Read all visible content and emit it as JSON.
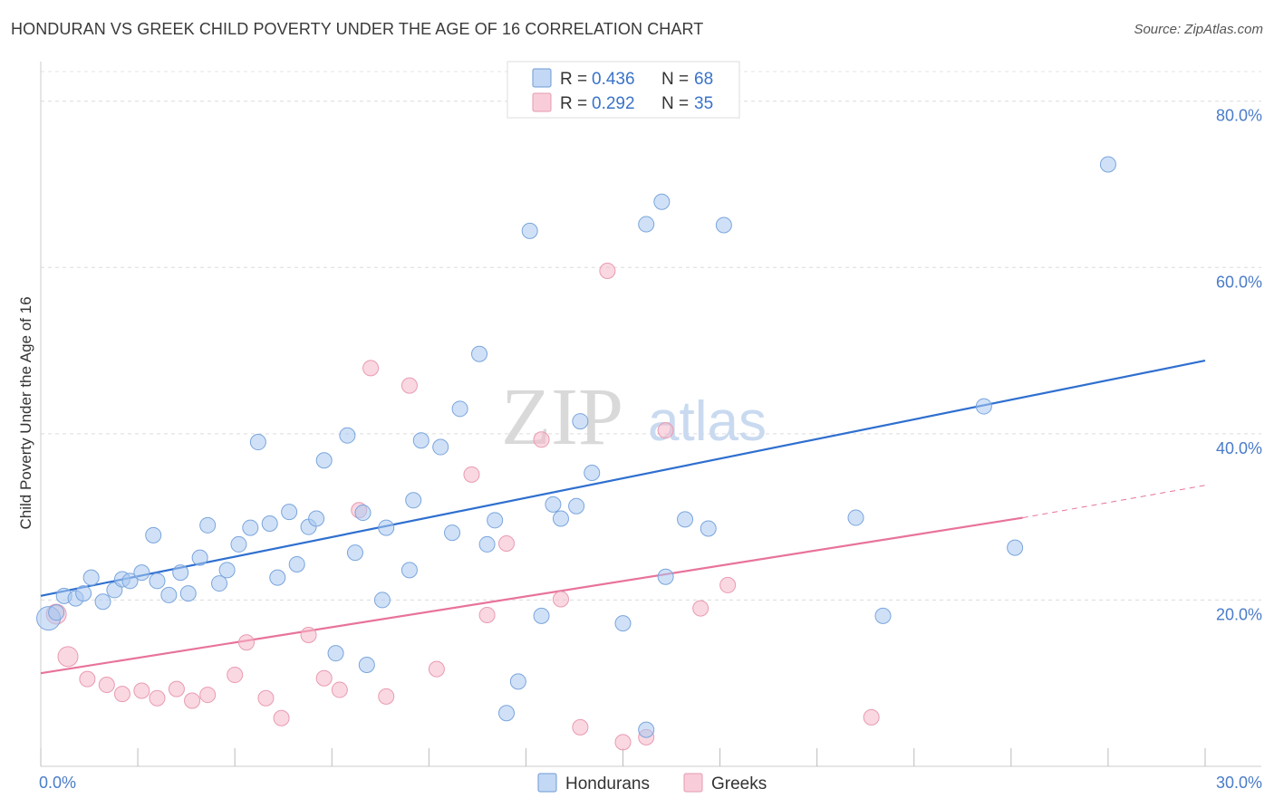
{
  "header": {
    "title": "HONDURAN VS GREEK CHILD POVERTY UNDER THE AGE OF 16 CORRELATION CHART",
    "source": "Source: ZipAtlas.com"
  },
  "legend": {
    "entries": [
      {
        "r_label": "R = ",
        "r_value": "0.436",
        "n_label": "N = ",
        "n_value": "68",
        "color": "#a9c8f0"
      },
      {
        "r_label": "R = ",
        "r_value": "0.292",
        "n_label": "N = ",
        "n_value": "35",
        "color": "#f5b8c9"
      }
    ]
  },
  "bottom_legend": [
    "Hondurans",
    "Greeks"
  ],
  "watermark": {
    "zip": "ZIP",
    "atlas": "atlas"
  },
  "chart_data": {
    "type": "scatter",
    "title": "HONDURAN VS GREEK CHILD POVERTY UNDER THE AGE OF 16 CORRELATION CHART",
    "xlabel": "",
    "ylabel": "Child Poverty Under the Age of 16",
    "xlim": [
      0,
      30
    ],
    "ylim": [
      0,
      84
    ],
    "x_tick_labels": [
      "0.0%",
      "30.0%"
    ],
    "y_tick_labels": [
      "20.0%",
      "40.0%",
      "60.0%",
      "80.0%"
    ],
    "y_ticks": [
      20,
      40,
      60,
      80
    ],
    "grid": true,
    "legend_position": "top-center",
    "colors": {
      "hondurans": "#a9c8f0",
      "hondurans_line": "#2f6fcf",
      "greeks": "#f5b8c9",
      "greeks_line": "#e8739a"
    },
    "series": [
      {
        "name": "Hondurans",
        "trend": {
          "x": [
            0,
            30
          ],
          "y": [
            20.5,
            48.8
          ]
        },
        "points": [
          [
            0.2,
            17.8
          ],
          [
            0.4,
            18.5
          ],
          [
            0.6,
            20.5
          ],
          [
            0.9,
            20.2
          ],
          [
            1.1,
            20.8
          ],
          [
            1.3,
            22.7
          ],
          [
            1.6,
            19.8
          ],
          [
            1.9,
            21.2
          ],
          [
            2.1,
            22.5
          ],
          [
            2.3,
            22.3
          ],
          [
            2.6,
            23.3
          ],
          [
            2.9,
            27.8
          ],
          [
            3.0,
            22.3
          ],
          [
            3.3,
            20.6
          ],
          [
            3.6,
            23.3
          ],
          [
            3.8,
            20.8
          ],
          [
            4.1,
            25.1
          ],
          [
            4.3,
            29.0
          ],
          [
            4.6,
            22.0
          ],
          [
            4.8,
            23.6
          ],
          [
            5.1,
            26.7
          ],
          [
            5.4,
            28.7
          ],
          [
            5.6,
            39.0
          ],
          [
            5.9,
            29.2
          ],
          [
            6.1,
            22.7
          ],
          [
            6.4,
            30.6
          ],
          [
            6.6,
            24.3
          ],
          [
            6.9,
            28.8
          ],
          [
            7.1,
            29.8
          ],
          [
            7.3,
            36.8
          ],
          [
            7.6,
            13.6
          ],
          [
            7.9,
            39.8
          ],
          [
            8.1,
            25.7
          ],
          [
            8.3,
            30.5
          ],
          [
            8.4,
            12.2
          ],
          [
            8.8,
            20.0
          ],
          [
            8.9,
            28.7
          ],
          [
            9.5,
            23.6
          ],
          [
            9.6,
            32.0
          ],
          [
            9.8,
            39.2
          ],
          [
            10.3,
            38.4
          ],
          [
            10.6,
            28.1
          ],
          [
            10.8,
            43.0
          ],
          [
            11.3,
            49.6
          ],
          [
            11.5,
            26.7
          ],
          [
            11.7,
            29.6
          ],
          [
            12.0,
            6.4
          ],
          [
            12.3,
            10.2
          ],
          [
            12.6,
            64.4
          ],
          [
            12.9,
            18.1
          ],
          [
            13.2,
            31.5
          ],
          [
            13.4,
            29.8
          ],
          [
            13.8,
            31.3
          ],
          [
            13.9,
            41.5
          ],
          [
            14.2,
            35.3
          ],
          [
            15.0,
            17.2
          ],
          [
            15.6,
            4.4
          ],
          [
            15.6,
            65.2
          ],
          [
            16.0,
            67.9
          ],
          [
            16.1,
            22.8
          ],
          [
            16.6,
            29.7
          ],
          [
            17.2,
            28.6
          ],
          [
            17.6,
            65.1
          ],
          [
            21.0,
            29.9
          ],
          [
            21.7,
            18.1
          ],
          [
            24.3,
            43.3
          ],
          [
            25.1,
            26.3
          ],
          [
            27.5,
            72.4
          ]
        ]
      },
      {
        "name": "Greeks",
        "trend": {
          "x": [
            0,
            25.3
          ],
          "y": [
            11.2,
            29.9
          ]
        },
        "trend_extension": {
          "x": [
            25.3,
            30
          ],
          "y": [
            29.9,
            33.8
          ]
        },
        "points": [
          [
            0.4,
            18.3
          ],
          [
            0.7,
            13.2
          ],
          [
            1.2,
            10.5
          ],
          [
            1.7,
            9.8
          ],
          [
            2.1,
            8.7
          ],
          [
            2.6,
            9.1
          ],
          [
            3.0,
            8.2
          ],
          [
            3.5,
            9.3
          ],
          [
            3.9,
            7.9
          ],
          [
            4.3,
            8.6
          ],
          [
            5.0,
            11.0
          ],
          [
            5.3,
            14.9
          ],
          [
            5.8,
            8.2
          ],
          [
            6.2,
            5.8
          ],
          [
            6.9,
            15.8
          ],
          [
            7.3,
            10.6
          ],
          [
            7.7,
            9.2
          ],
          [
            8.2,
            30.8
          ],
          [
            8.5,
            47.9
          ],
          [
            8.9,
            8.4
          ],
          [
            9.5,
            45.8
          ],
          [
            10.2,
            11.7
          ],
          [
            11.1,
            35.1
          ],
          [
            11.5,
            18.2
          ],
          [
            12.0,
            26.8
          ],
          [
            12.9,
            39.3
          ],
          [
            13.4,
            20.1
          ],
          [
            13.9,
            4.7
          ],
          [
            14.6,
            59.6
          ],
          [
            15.0,
            2.9
          ],
          [
            15.6,
            3.5
          ],
          [
            16.1,
            40.4
          ],
          [
            17.0,
            19.0
          ],
          [
            17.7,
            21.8
          ],
          [
            21.4,
            5.9
          ]
        ]
      }
    ]
  }
}
